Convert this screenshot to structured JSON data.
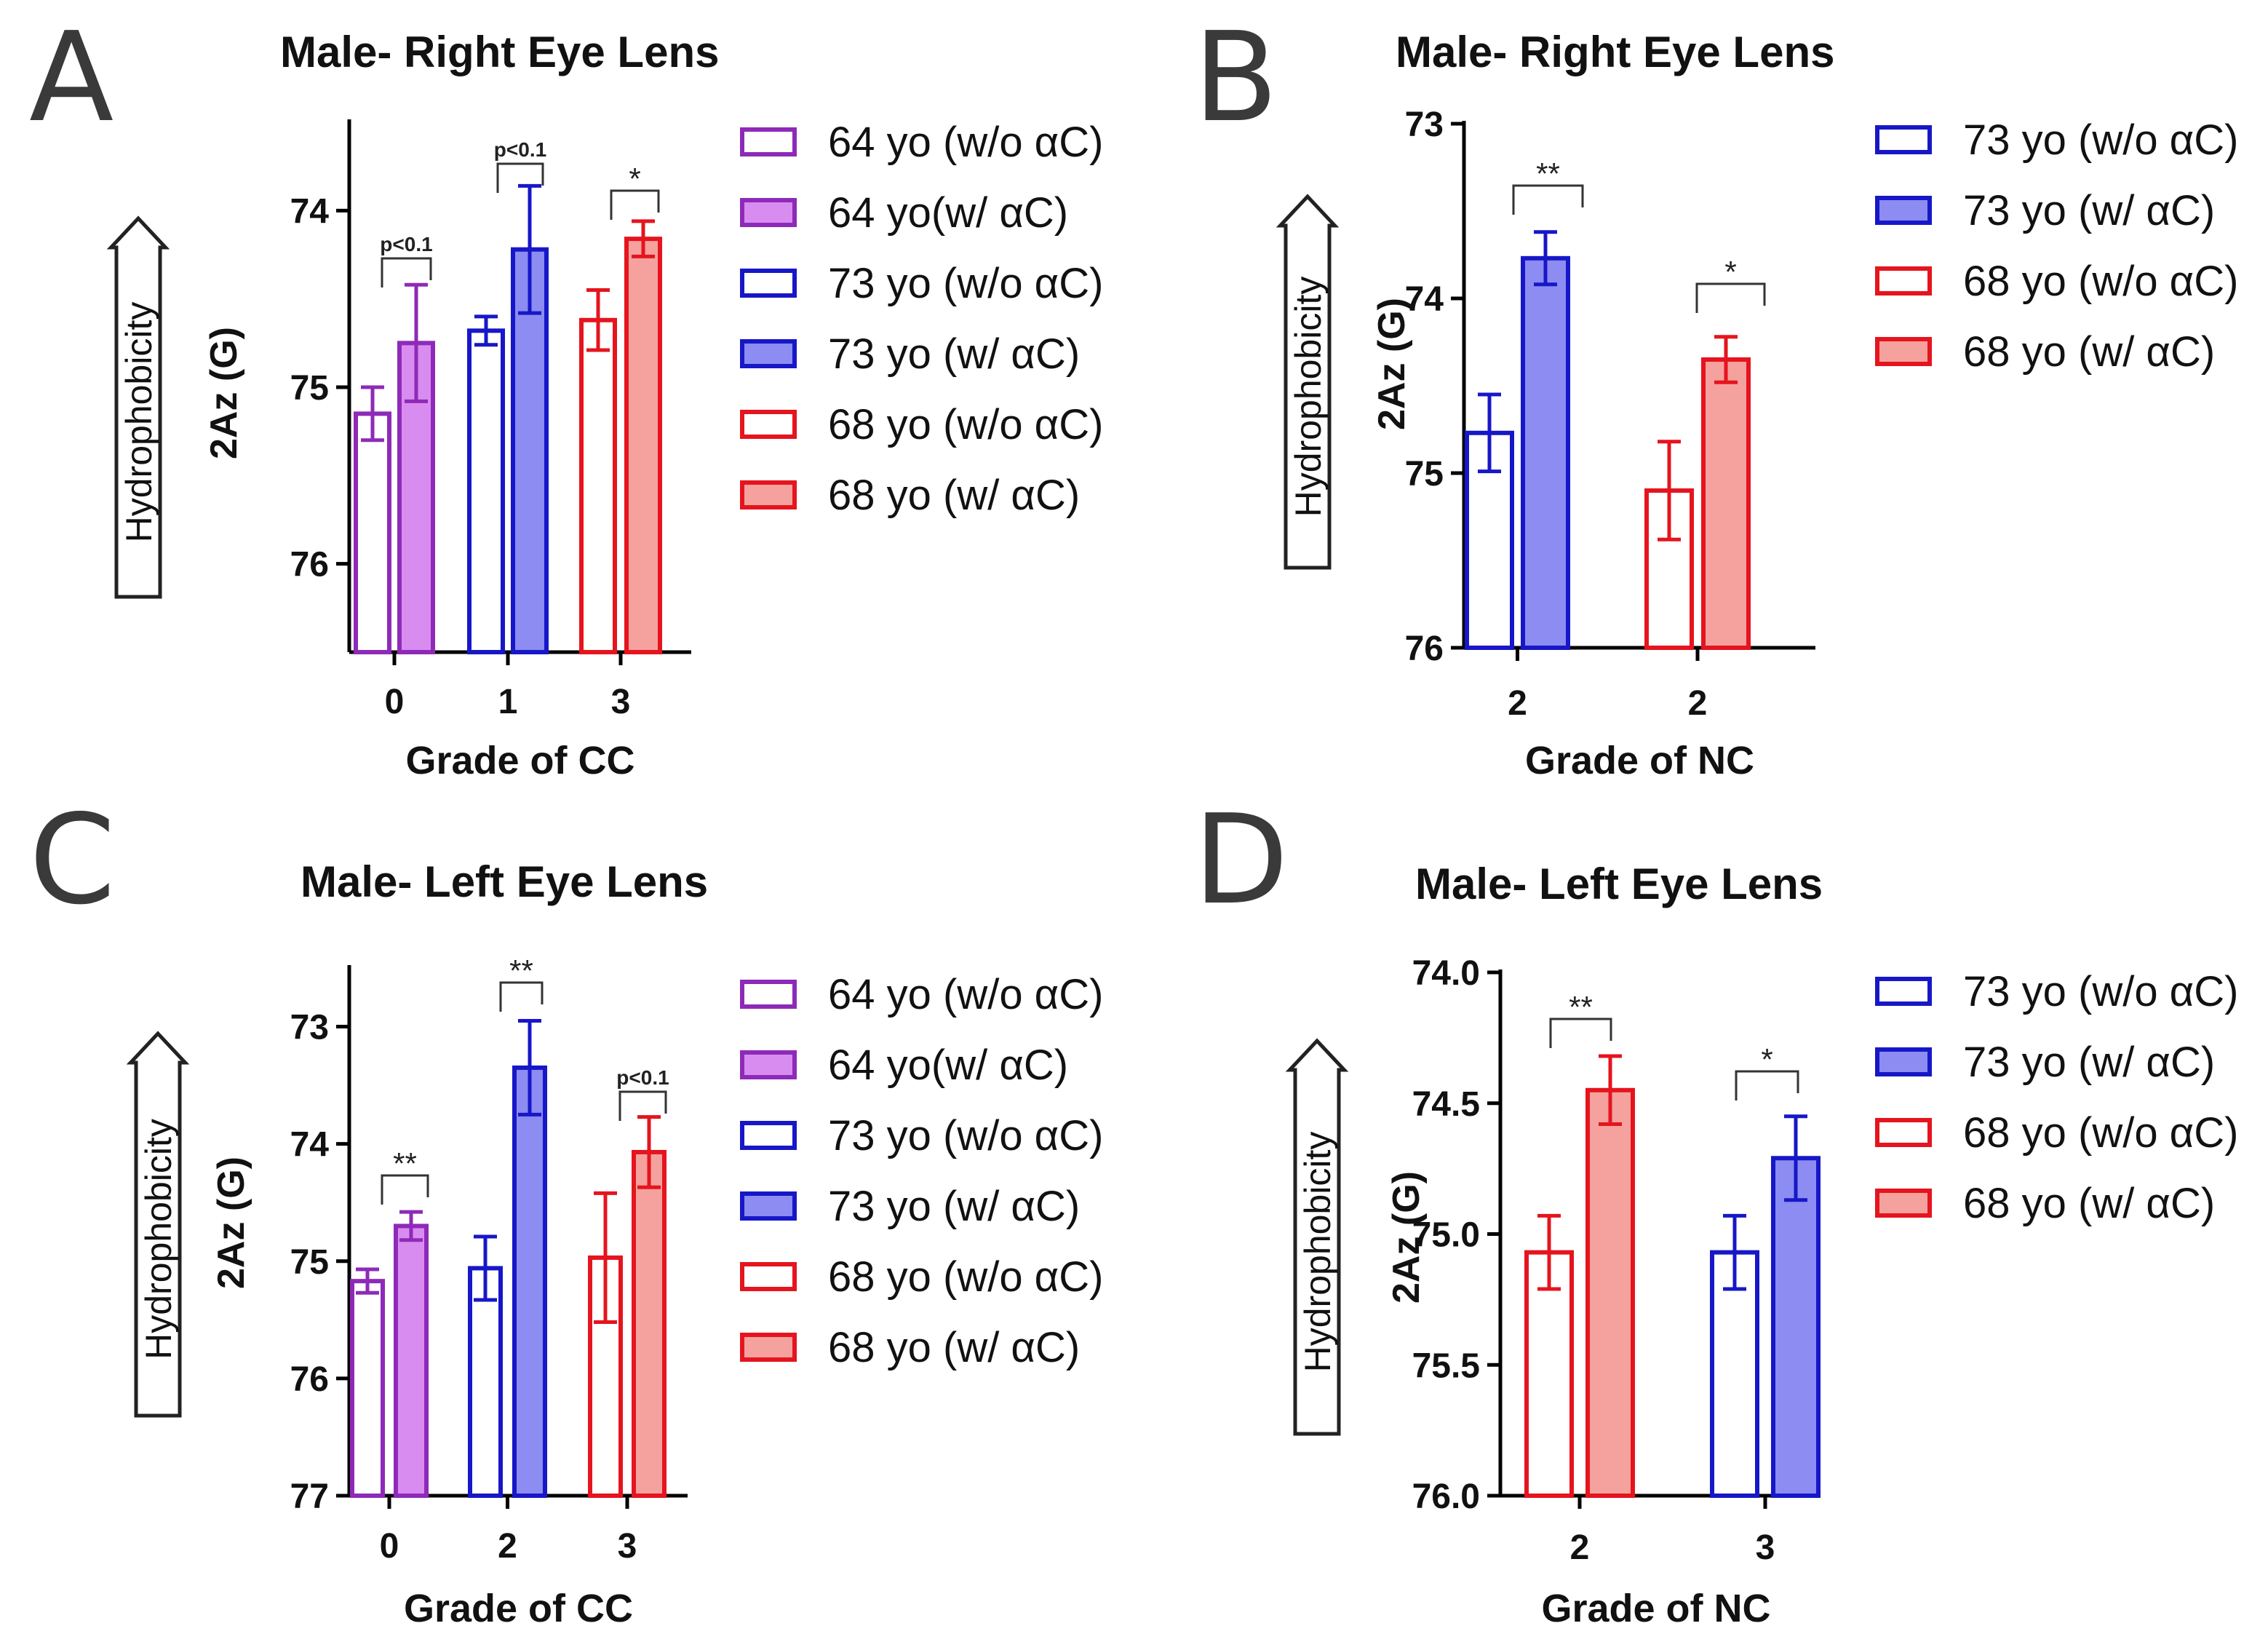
{
  "colors": {
    "purple": "#8e2ab8",
    "purple_fill": "#d98cf0",
    "blue": "#1717c8",
    "blue_fill": "#8c8cf2",
    "red": "#e5141e",
    "red_fill": "#f5a29e"
  },
  "chart_data": [
    {
      "panel": "A",
      "type": "bar",
      "title": "Male- Right Eye Lens",
      "xlabel": "Grade of CC",
      "ylabel": "2Az (G)",
      "y_axis_note": "Hydrophobicity",
      "y_inverted": true,
      "ylim": [
        76.5,
        73.5
      ],
      "yticks": [
        "74",
        "75",
        "76"
      ],
      "categories": [
        "0",
        "1",
        "3"
      ],
      "series": [
        {
          "name": "64 yo (w/o αC)",
          "color_key": "purple",
          "filled": false,
          "category": "0",
          "value": 75.15,
          "error": 0.15
        },
        {
          "name": "64 yo(w/ αC)",
          "color_key": "purple",
          "filled": true,
          "category": "0",
          "value": 74.75,
          "error": 0.33
        },
        {
          "name": "73 yo (w/o αC)",
          "color_key": "blue",
          "filled": false,
          "category": "1",
          "value": 74.68,
          "error": 0.08
        },
        {
          "name": "73 yo (w/ αC)",
          "color_key": "blue",
          "filled": true,
          "category": "1",
          "value": 74.22,
          "error": 0.36
        },
        {
          "name": "68 yo (w/o αC)",
          "color_key": "red",
          "filled": false,
          "category": "3",
          "value": 74.62,
          "error": 0.17
        },
        {
          "name": "68 yo (w/ αC)",
          "color_key": "red",
          "filled": true,
          "category": "3",
          "value": 74.16,
          "error": 0.1
        }
      ],
      "annotations": [
        {
          "category": "0",
          "text": "p<0.1"
        },
        {
          "category": "1",
          "text": "p<0.1"
        },
        {
          "category": "3",
          "text": "*"
        }
      ]
    },
    {
      "panel": "B",
      "type": "bar",
      "title": "Male- Right Eye Lens",
      "xlabel": "Grade of NC",
      "ylabel": "2Az (G)",
      "y_axis_note": "Hydrophobicity",
      "y_inverted": true,
      "ylim": [
        76,
        73
      ],
      "yticks": [
        "73",
        "74",
        "75",
        "76"
      ],
      "categories": [
        "2",
        "2"
      ],
      "series": [
        {
          "name": "73 yo (w/o αC)",
          "color_key": "blue",
          "filled": false,
          "category_index": 0,
          "value": 74.77,
          "error": 0.22
        },
        {
          "name": "73 yo (w/ αC)",
          "color_key": "blue",
          "filled": true,
          "category_index": 0,
          "value": 73.77,
          "error": 0.15
        },
        {
          "name": "68 yo (w/o αC)",
          "color_key": "red",
          "filled": false,
          "category_index": 1,
          "value": 75.1,
          "error": 0.28
        },
        {
          "name": "68 yo (w/ αC)",
          "color_key": "red",
          "filled": true,
          "category_index": 1,
          "value": 74.35,
          "error": 0.13
        }
      ],
      "annotations": [
        {
          "category_index": 0,
          "text": "**"
        },
        {
          "category_index": 1,
          "text": "*"
        }
      ]
    },
    {
      "panel": "C",
      "type": "bar",
      "title": "Male- Left Eye Lens",
      "xlabel": "Grade of CC",
      "ylabel": "2Az (G)",
      "y_axis_note": "Hydrophobicity",
      "y_inverted": true,
      "ylim": [
        77,
        72.5
      ],
      "yticks": [
        "73",
        "74",
        "75",
        "76",
        "77"
      ],
      "categories": [
        "0",
        "2",
        "3"
      ],
      "series": [
        {
          "name": "64 yo (w/o αC)",
          "color_key": "purple",
          "filled": false,
          "category": "0",
          "value": 75.17,
          "error": 0.1
        },
        {
          "name": "64 yo(w/ αC)",
          "color_key": "purple",
          "filled": true,
          "category": "0",
          "value": 74.7,
          "error": 0.12
        },
        {
          "name": "73 yo (w/o αC)",
          "color_key": "blue",
          "filled": false,
          "category": "2",
          "value": 75.06,
          "error": 0.27
        },
        {
          "name": "73 yo (w/ αC)",
          "color_key": "blue",
          "filled": true,
          "category": "2",
          "value": 73.35,
          "error": 0.4
        },
        {
          "name": "68 yo (w/o αC)",
          "color_key": "red",
          "filled": false,
          "category": "3",
          "value": 74.97,
          "error": 0.55
        },
        {
          "name": "68 yo (w/ αC)",
          "color_key": "red",
          "filled": true,
          "category": "3",
          "value": 74.07,
          "error": 0.3
        }
      ],
      "annotations": [
        {
          "category": "0",
          "text": "**"
        },
        {
          "category": "2",
          "text": "**"
        },
        {
          "category": "3",
          "text": "p<0.1"
        }
      ]
    },
    {
      "panel": "D",
      "type": "bar",
      "title": "Male- Left Eye Lens",
      "xlabel": "Grade of NC",
      "ylabel": "2Az (G)",
      "y_axis_note": "Hydrophobicity",
      "y_inverted": true,
      "ylim": [
        76.0,
        74.0
      ],
      "yticks": [
        "74.0",
        "74.5",
        "75.0",
        "75.5",
        "76.0"
      ],
      "categories": [
        "2",
        "3"
      ],
      "series": [
        {
          "name": "73 yo (w/o αC)",
          "color_key": "blue",
          "filled": false,
          "category": "3",
          "value": 75.07,
          "error": 0.14
        },
        {
          "name": "73 yo (w/ αC)",
          "color_key": "blue",
          "filled": true,
          "category": "3",
          "value": 74.71,
          "error": 0.16
        },
        {
          "name": "68 yo (w/o αC)",
          "color_key": "red",
          "filled": false,
          "category": "2",
          "value": 75.07,
          "error": 0.14
        },
        {
          "name": "68 yo (w/ αC)",
          "color_key": "red",
          "filled": true,
          "category": "2",
          "value": 74.45,
          "error": 0.13
        }
      ],
      "annotations": [
        {
          "category": "2",
          "text": "**"
        },
        {
          "category": "3",
          "text": "*"
        }
      ]
    }
  ]
}
